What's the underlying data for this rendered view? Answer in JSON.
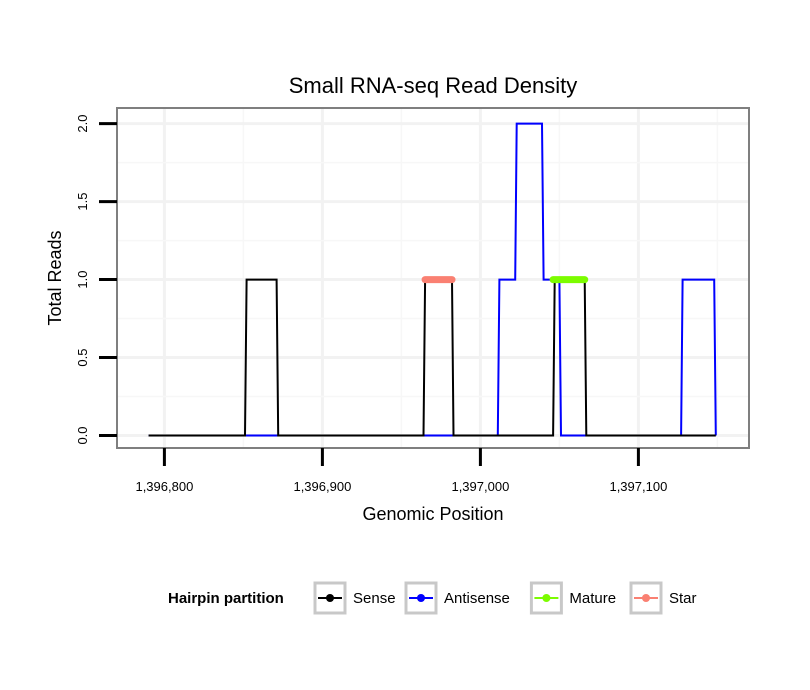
{
  "chart_data": {
    "type": "line",
    "title": "Small RNA-seq Read Density",
    "xlabel": "Genomic Position",
    "ylabel": "Total Reads",
    "xlim": [
      1396770,
      1397170
    ],
    "ylim": [
      -0.08,
      2.1
    ],
    "x_ticks": [
      1396800,
      1396900,
      1397000,
      1397100
    ],
    "x_tick_labels": [
      "1,396,800",
      "1,396,900",
      "1,397,000",
      "1,397,100"
    ],
    "y_ticks": [
      0,
      0.5,
      1,
      1.5,
      2
    ],
    "y_tick_labels": [
      "0.0",
      "0.5",
      "1.0",
      "1.5",
      "2.0"
    ],
    "grid": true,
    "legend_title": "Hairpin partition",
    "legend_position": "bottom",
    "series": [
      {
        "name": "Antisense",
        "color": "#0000ff",
        "x": [
          1396790,
          1397011,
          1397012,
          1397022,
          1397023,
          1397039,
          1397040,
          1397050,
          1397051,
          1397127,
          1397128,
          1397148,
          1397149
        ],
        "y": [
          0,
          0,
          1,
          1,
          2,
          2,
          1,
          1,
          0,
          0,
          1,
          1,
          0
        ]
      },
      {
        "name": "Sense",
        "color": "#000000",
        "x": [
          1396790,
          1396851,
          1396852,
          1396871,
          1396872,
          1396964,
          1396965,
          1396982,
          1396983,
          1397046,
          1397047,
          1397066,
          1397067,
          1397149
        ],
        "y": [
          0,
          0,
          1,
          1,
          0,
          0,
          1,
          1,
          0,
          0,
          1,
          1,
          0,
          0
        ]
      },
      {
        "name": "Mature",
        "color": "#7cfc00",
        "x": [
          1397046,
          1397066
        ],
        "y": [
          1,
          1
        ]
      },
      {
        "name": "Star",
        "color": "#fa8072",
        "x": [
          1396965,
          1396982
        ],
        "y": [
          1,
          1
        ]
      }
    ],
    "legend_entries": [
      {
        "name": "Sense",
        "color": "#000000"
      },
      {
        "name": "Antisense",
        "color": "#0000ff"
      },
      {
        "name": "Mature",
        "color": "#7cfc00"
      },
      {
        "name": "Star",
        "color": "#fa8072"
      }
    ]
  }
}
